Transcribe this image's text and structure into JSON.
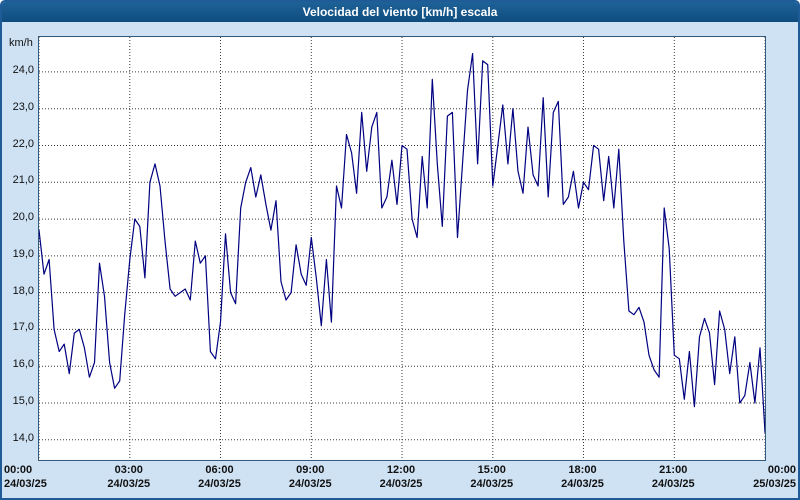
{
  "window": {
    "title": "Velocidad del viento [km/h] escala"
  },
  "chart_data": {
    "type": "line",
    "title": "Velocidad del viento [km/h] escala",
    "ylabel": "km/h",
    "series_name": "Velocidad del viento",
    "line_color": "#000080",
    "grid": "dotted",
    "legend_position": "none",
    "xlim": [
      0,
      24
    ],
    "ylim": [
      13.45,
      24.95
    ],
    "x_step_minutes": 10,
    "yticks": [
      14,
      15,
      16,
      17,
      18,
      19,
      20,
      21,
      22,
      23,
      24
    ],
    "ytick_labels": [
      "14,0",
      "15,0",
      "16,0",
      "17,0",
      "18,0",
      "19,0",
      "20,0",
      "21,0",
      "22,0",
      "23,0",
      "24,0"
    ],
    "xticks_hours": [
      0,
      3,
      6,
      9,
      12,
      15,
      18,
      21,
      24
    ],
    "xtick_labels": [
      {
        "time": "00:00",
        "date": "24/03/25"
      },
      {
        "time": "03:00",
        "date": "24/03/25"
      },
      {
        "time": "06:00",
        "date": "24/03/25"
      },
      {
        "time": "09:00",
        "date": "24/03/25"
      },
      {
        "time": "12:00",
        "date": "24/03/25"
      },
      {
        "time": "15:00",
        "date": "24/03/25"
      },
      {
        "time": "18:00",
        "date": "24/03/25"
      },
      {
        "time": "21:00",
        "date": "24/03/25"
      },
      {
        "time": "00:00",
        "date": "25/03/25"
      }
    ],
    "values": [
      19.7,
      18.5,
      18.9,
      17.0,
      16.4,
      16.6,
      15.8,
      16.9,
      17.0,
      16.5,
      15.7,
      16.1,
      18.8,
      17.9,
      16.1,
      15.4,
      15.6,
      17.4,
      18.9,
      20.0,
      19.8,
      18.4,
      21.0,
      21.5,
      20.9,
      19.4,
      18.1,
      17.9,
      18.0,
      18.1,
      17.8,
      19.4,
      18.8,
      19.0,
      16.4,
      16.2,
      17.2,
      19.6,
      18.0,
      17.7,
      20.3,
      21.0,
      21.4,
      20.6,
      21.2,
      20.4,
      19.7,
      20.5,
      18.3,
      17.8,
      18.0,
      19.3,
      18.5,
      18.2,
      19.5,
      18.4,
      17.1,
      18.9,
      17.2,
      20.9,
      20.3,
      22.3,
      21.8,
      20.7,
      22.9,
      21.3,
      22.5,
      22.9,
      20.3,
      20.6,
      21.6,
      20.4,
      22.0,
      21.9,
      20.0,
      19.5,
      21.7,
      20.3,
      23.8,
      21.5,
      19.8,
      22.8,
      22.9,
      19.5,
      21.5,
      23.5,
      24.5,
      21.5,
      24.3,
      24.2,
      20.9,
      22.0,
      23.1,
      21.5,
      23.0,
      21.3,
      20.7,
      22.5,
      21.2,
      20.9,
      23.3,
      20.6,
      22.9,
      23.2,
      20.4,
      20.6,
      21.3,
      20.3,
      21.0,
      20.8,
      22.0,
      21.9,
      20.5,
      21.7,
      20.3,
      21.9,
      19.4,
      17.5,
      17.4,
      17.6,
      17.2,
      16.3,
      15.9,
      15.7,
      20.3,
      19.2,
      16.3,
      16.2,
      15.1,
      16.4,
      14.9,
      16.8,
      17.3,
      16.9,
      15.5,
      17.5,
      17.0,
      15.8,
      16.8,
      15.0,
      15.2,
      16.1,
      15.0,
      16.5,
      14.2
    ]
  }
}
